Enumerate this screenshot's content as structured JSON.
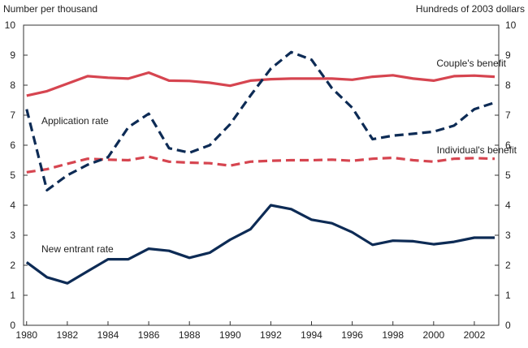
{
  "chart_data": {
    "type": "line",
    "left_axis_label": "Number per thousand",
    "right_axis_label": "Hundreds of 2003 dollars",
    "x": [
      1980,
      1981,
      1982,
      1983,
      1984,
      1985,
      1986,
      1987,
      1988,
      1989,
      1990,
      1991,
      1992,
      1993,
      1994,
      1995,
      1996,
      1997,
      1998,
      1999,
      2000,
      2001,
      2002,
      2003
    ],
    "x_tick_labels": [
      "1980",
      "1982",
      "1984",
      "1986",
      "1988",
      "1990",
      "1992",
      "1994",
      "1996",
      "1998",
      "2000",
      "2002"
    ],
    "x_ticks": [
      1980,
      1982,
      1984,
      1986,
      1988,
      1990,
      1992,
      1994,
      1996,
      1998,
      2000,
      2002
    ],
    "xlim": [
      1979.85,
      2003.2
    ],
    "y_tick_labels": [
      "0",
      "1",
      "2",
      "3",
      "4",
      "5",
      "6",
      "7",
      "8",
      "9",
      "10"
    ],
    "y_ticks": [
      0,
      1,
      2,
      3,
      4,
      5,
      6,
      7,
      8,
      9,
      10
    ],
    "ylim": [
      0,
      10
    ],
    "grid": false,
    "series": [
      {
        "name": "Couple's benefit",
        "label_text": "Couple's benefit",
        "axis": "right",
        "color": "#d64550",
        "style": "solid",
        "values": [
          7.65,
          7.8,
          8.05,
          8.3,
          8.25,
          8.22,
          8.42,
          8.15,
          8.14,
          8.08,
          7.98,
          8.15,
          8.2,
          8.22,
          8.22,
          8.22,
          8.18,
          8.28,
          8.33,
          8.22,
          8.15,
          8.3,
          8.32,
          8.28
        ]
      },
      {
        "name": "Individual's benefit",
        "label_text": "Individual's benefit",
        "axis": "right",
        "color": "#d64550",
        "style": "dashed",
        "values": [
          5.1,
          5.2,
          5.38,
          5.55,
          5.52,
          5.5,
          5.62,
          5.45,
          5.42,
          5.4,
          5.32,
          5.45,
          5.48,
          5.5,
          5.5,
          5.52,
          5.48,
          5.55,
          5.58,
          5.5,
          5.45,
          5.55,
          5.57,
          5.55
        ]
      },
      {
        "name": "Application rate",
        "label_text": "Application rate",
        "axis": "left",
        "color": "#0d2b55",
        "style": "dashed",
        "values": [
          7.2,
          4.5,
          5.0,
          5.35,
          5.6,
          6.6,
          7.05,
          5.9,
          5.75,
          6.0,
          6.7,
          7.65,
          8.55,
          9.1,
          8.85,
          7.9,
          7.25,
          6.2,
          6.32,
          6.38,
          6.45,
          6.65,
          7.2,
          7.42
        ]
      },
      {
        "name": "New entrant rate",
        "label_text": "New entrant rate",
        "axis": "left",
        "color": "#0d2b55",
        "style": "solid",
        "values": [
          2.1,
          1.6,
          1.4,
          1.8,
          2.2,
          2.2,
          2.55,
          2.48,
          2.25,
          2.42,
          2.85,
          3.2,
          4.0,
          3.87,
          3.52,
          3.4,
          3.1,
          2.68,
          2.82,
          2.8,
          2.7,
          2.78,
          2.92,
          2.92
        ]
      }
    ]
  }
}
